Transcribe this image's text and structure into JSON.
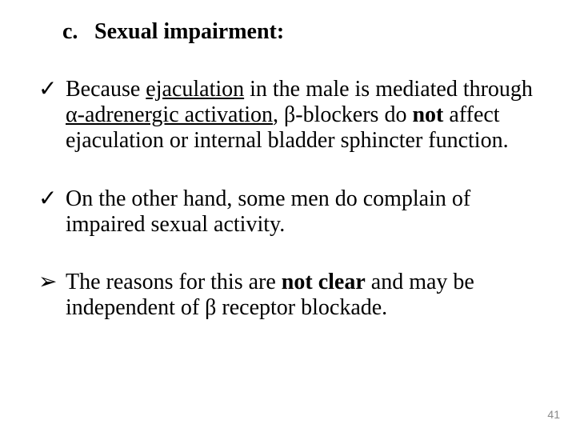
{
  "heading": {
    "letter": "c.",
    "title": "Sexual impairment:"
  },
  "bullets": [
    {
      "mark": "✓",
      "segments": [
        {
          "t": "Because ",
          "b": false,
          "u": false
        },
        {
          "t": "ejaculation",
          "b": false,
          "u": true
        },
        {
          "t": " in the male is mediated through ",
          "b": false,
          "u": false
        },
        {
          "t": "α-adrenergic activation",
          "b": false,
          "u": true
        },
        {
          "t": ", β-blockers do ",
          "b": false,
          "u": false
        },
        {
          "t": "not",
          "b": true,
          "u": false
        },
        {
          "t": " affect ejaculation or internal bladder sphincter function.",
          "b": false,
          "u": false
        }
      ]
    },
    {
      "mark": "✓",
      "segments": [
        {
          "t": "On the other hand, some men do complain of impaired sexual activity.",
          "b": false,
          "u": false
        }
      ]
    },
    {
      "mark": "➢",
      "segments": [
        {
          "t": "The reasons for this are ",
          "b": false,
          "u": false
        },
        {
          "t": "not clear",
          "b": true,
          "u": false
        },
        {
          "t": " and may be independent of β receptor blockade.",
          "b": false,
          "u": false
        }
      ]
    }
  ],
  "pageNumber": "41",
  "colors": {
    "text": "#000000",
    "pageNum": "#8a8a8a",
    "background": "#ffffff"
  },
  "fontSizes": {
    "body": 28,
    "pageNum": 14
  }
}
